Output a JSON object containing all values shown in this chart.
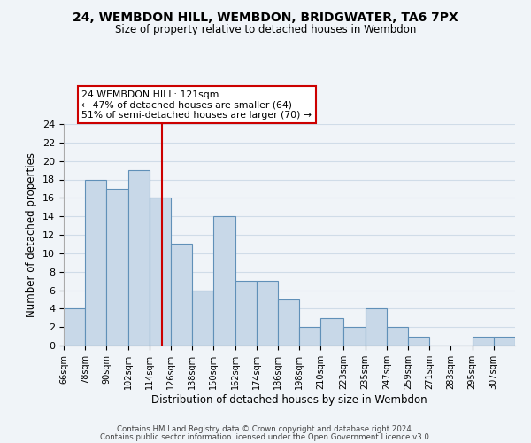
{
  "title": "24, WEMBDON HILL, WEMBDON, BRIDGWATER, TA6 7PX",
  "subtitle": "Size of property relative to detached houses in Wembdon",
  "xlabel": "Distribution of detached houses by size in Wembdon",
  "ylabel": "Number of detached properties",
  "bin_labels": [
    "66sqm",
    "78sqm",
    "90sqm",
    "102sqm",
    "114sqm",
    "126sqm",
    "138sqm",
    "150sqm",
    "162sqm",
    "174sqm",
    "186sqm",
    "198sqm",
    "210sqm",
    "223sqm",
    "235sqm",
    "247sqm",
    "259sqm",
    "271sqm",
    "283sqm",
    "295sqm",
    "307sqm"
  ],
  "bar_values": [
    4,
    18,
    17,
    19,
    16,
    11,
    6,
    14,
    7,
    7,
    5,
    2,
    3,
    2,
    4,
    2,
    1,
    0,
    0,
    1,
    1
  ],
  "bar_color": "#c8d8e8",
  "bar_edge_color": "#6090b8",
  "reference_line_x": 121,
  "bin_edges": [
    66,
    78,
    90,
    102,
    114,
    126,
    138,
    150,
    162,
    174,
    186,
    198,
    210,
    223,
    235,
    247,
    259,
    271,
    283,
    295,
    307,
    319
  ],
  "ref_line_color": "#cc0000",
  "ylim": [
    0,
    24
  ],
  "yticks": [
    0,
    2,
    4,
    6,
    8,
    10,
    12,
    14,
    16,
    18,
    20,
    22,
    24
  ],
  "annotation_title": "24 WEMBDON HILL: 121sqm",
  "annotation_line1": "← 47% of detached houses are smaller (64)",
  "annotation_line2": "51% of semi-detached houses are larger (70) →",
  "footer1": "Contains HM Land Registry data © Crown copyright and database right 2024.",
  "footer2": "Contains public sector information licensed under the Open Government Licence v3.0.",
  "grid_color": "#d0dce8",
  "background_color": "#f0f4f8"
}
